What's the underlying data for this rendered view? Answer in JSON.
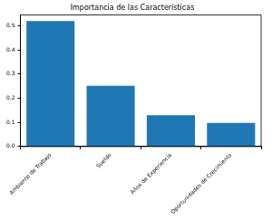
{
  "chart_data": {
    "type": "bar",
    "title": "Importancia de las Características",
    "categories": [
      "Ambiente de Trabajo",
      "Sueldo",
      "Años de Experiencia",
      "Oportunidades de Crecimiento"
    ],
    "values": [
      0.52,
      0.252,
      0.13,
      0.098
    ],
    "color": "#1f77b4",
    "ylim": [
      0,
      0.545
    ],
    "yticks": [
      {
        "value": 0,
        "label": "0.0"
      },
      0.1,
      0.2,
      0.3,
      0.4,
      0.5
    ],
    "grid": false
  }
}
